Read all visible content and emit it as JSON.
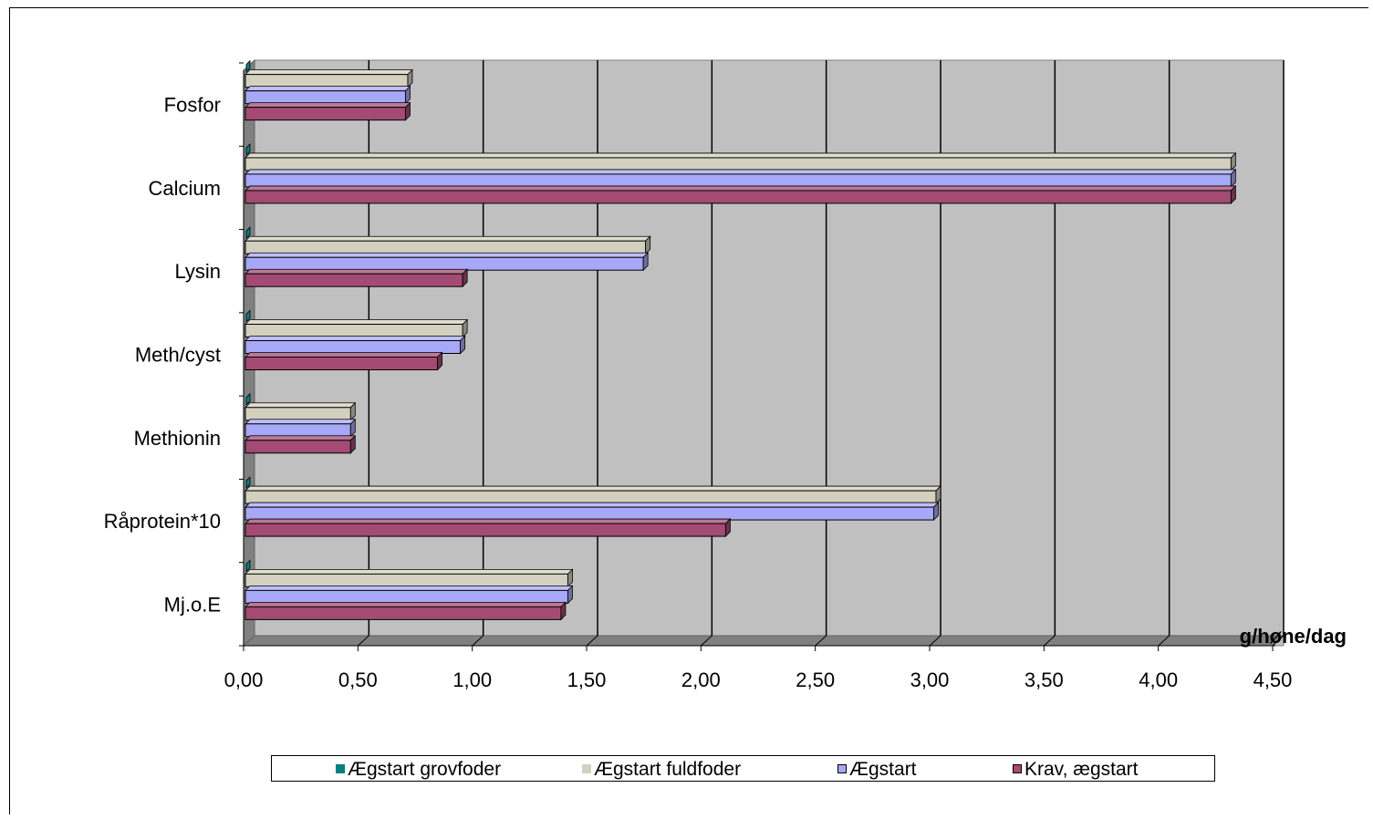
{
  "chart_data": {
    "type": "bar",
    "orientation": "horizontal",
    "style": "3d",
    "categories": [
      "Mj.o.E",
      "Råprotein*10",
      "Methionin",
      "Meth/cyst",
      "Lysin",
      "Calcium",
      "Fosfor"
    ],
    "series": [
      {
        "name": "Ægstart grovfoder",
        "color": "#008080",
        "values": [
          0.0,
          0.0,
          0.0,
          0.0,
          0.0,
          0.0,
          0.0
        ]
      },
      {
        "name": "Ægstart fuldfoder",
        "color": "#d4d0c0",
        "values": [
          1.41,
          3.02,
          0.46,
          0.95,
          1.75,
          4.31,
          0.71
        ]
      },
      {
        "name": "Ægstart",
        "color": "#a8a8f8",
        "values": [
          1.41,
          3.01,
          0.46,
          0.94,
          1.74,
          4.31,
          0.7
        ]
      },
      {
        "name": "Krav, ægstart",
        "color": "#a34b73",
        "values": [
          1.38,
          2.1,
          0.46,
          0.84,
          0.95,
          4.31,
          0.7
        ]
      }
    ],
    "x_ticks": [
      "0,00",
      "0,50",
      "1,00",
      "1,50",
      "2,00",
      "2,50",
      "3,00",
      "3,50",
      "4,00",
      "4,50"
    ],
    "xlim": [
      0,
      4.5
    ],
    "xlabel": "g/høne/dag",
    "grid": true,
    "legend_position": "bottom",
    "plot_color": "#c0c0c0"
  }
}
